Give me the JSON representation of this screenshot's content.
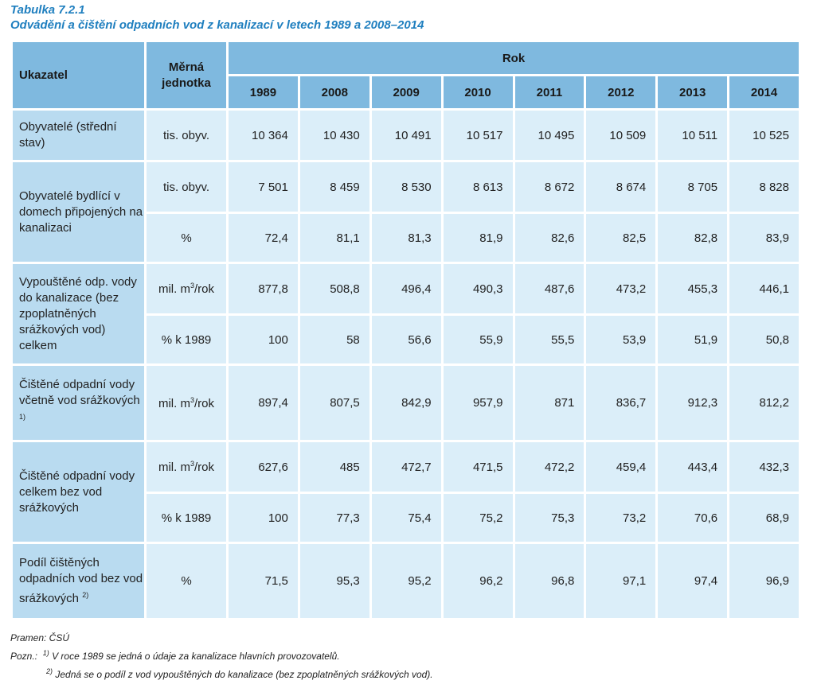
{
  "caption": {
    "number": "Tabulka 7.2.1",
    "title": "Odvádění a čištění odpadních vod z kanalizací v letech 1989 a 2008–2014"
  },
  "table": {
    "headers": {
      "indicator": "Ukazatel",
      "unit": "Měrná jednotka",
      "year_group": "Rok",
      "years": [
        "1989",
        "2008",
        "2009",
        "2010",
        "2011",
        "2012",
        "2013",
        "2014"
      ]
    },
    "groups": [
      {
        "label": "Obyvatelé (střední stav)",
        "rows": [
          {
            "unit": "tis. obyv.",
            "values": [
              "10 364",
              "10 430",
              "10 491",
              "10 517",
              "10 495",
              "10 509",
              "10 511",
              "10 525"
            ]
          }
        ]
      },
      {
        "label": "Obyvatelé bydlící v domech připojených na kanalizaci",
        "rows": [
          {
            "unit": "tis. obyv.",
            "values": [
              "7 501",
              "8 459",
              "8 530",
              "8 613",
              "8 672",
              "8 674",
              "8 705",
              "8 828"
            ]
          },
          {
            "unit": "%",
            "values": [
              "72,4",
              "81,1",
              "81,3",
              "81,9",
              "82,6",
              "82,5",
              "82,8",
              "83,9"
            ]
          }
        ]
      },
      {
        "label": "Vypouštěné odp. vody do kanalizace (bez zpoplatněných srážkových vod) celkem",
        "rows": [
          {
            "unit": "mil. m3/rok",
            "values": [
              "877,8",
              "508,8",
              "496,4",
              "490,3",
              "487,6",
              "473,2",
              "455,3",
              "446,1"
            ]
          },
          {
            "unit": "% k 1989",
            "values": [
              "100",
              "58",
              "56,6",
              "55,9",
              "55,5",
              "53,9",
              "51,9",
              "50,8"
            ]
          }
        ]
      },
      {
        "label": "Čištěné odpadní vody včetně vod srážkových",
        "footnote": "1)",
        "rows": [
          {
            "unit": "mil. m3/rok",
            "values": [
              "897,4",
              "807,5",
              "842,9",
              "957,9",
              "871",
              "836,7",
              "912,3",
              "812,2"
            ]
          }
        ]
      },
      {
        "label": "Čištěné odpadní vody celkem bez vod srážkových",
        "rows": [
          {
            "unit": "mil. m3/rok",
            "values": [
              "627,6",
              "485",
              "472,7",
              "471,5",
              "472,2",
              "459,4",
              "443,4",
              "432,3"
            ]
          },
          {
            "unit": "% k 1989",
            "values": [
              "100",
              "77,3",
              "75,4",
              "75,2",
              "75,3",
              "73,2",
              "70,6",
              "68,9"
            ]
          }
        ]
      },
      {
        "label": "Podíl čištěných odpadních vod bez vod srážkových",
        "footnote": "2)",
        "rows": [
          {
            "unit": "%",
            "values": [
              "71,5",
              "95,3",
              "95,2",
              "96,2",
              "96,8",
              "97,1",
              "97,4",
              "96,9"
            ]
          }
        ]
      }
    ]
  },
  "notes": {
    "source": "Pramen: ČSÚ",
    "note_prefix": "Pozn.:",
    "note1_mark": "1)",
    "note1": "V roce 1989 se jedná o údaje za kanalizace hlavních provozovatelů.",
    "note2_mark": "2)",
    "note2": "Jedná se o podíl z vod vypouštěných do kanalizace (bez zpoplatněných srážkových vod)."
  }
}
